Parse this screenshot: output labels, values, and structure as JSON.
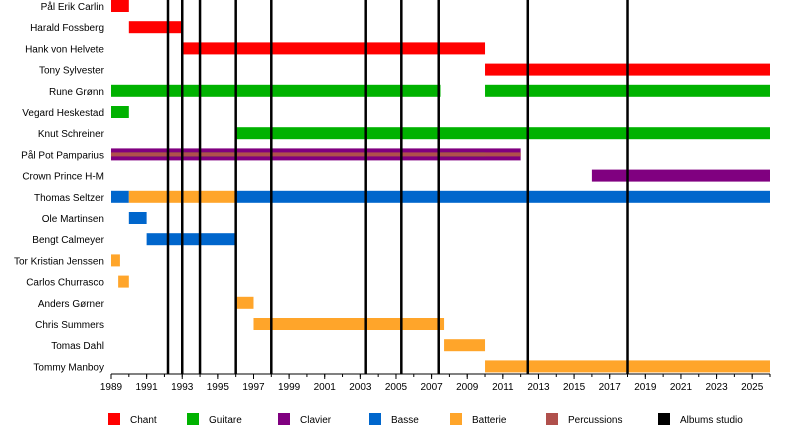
{
  "chart_data": {
    "type": "timeline",
    "title": "",
    "xlabel": "",
    "ylabel": "",
    "xlim": [
      1989,
      2026
    ],
    "xticks": [
      "1989",
      "1991",
      "1993",
      "1995",
      "1997",
      "1999",
      "2001",
      "2003",
      "2005",
      "2007",
      "2009",
      "2011",
      "2013",
      "2015",
      "2017",
      "2019",
      "2021",
      "2023",
      "2025"
    ],
    "grid": false,
    "legend_position": "bottom",
    "roles": [
      {
        "key": "chant",
        "label": "Chant",
        "color": "#ff0000"
      },
      {
        "key": "guitare",
        "label": "Guitare",
        "color": "#00b200"
      },
      {
        "key": "clavier",
        "label": "Clavier",
        "color": "#800080"
      },
      {
        "key": "basse",
        "label": "Basse",
        "color": "#0066cc"
      },
      {
        "key": "batterie",
        "label": "Batterie",
        "color": "#ffa52a"
      },
      {
        "key": "percussions",
        "label": "Percussions",
        "color": "#b0504c"
      },
      {
        "key": "albums",
        "label": "Albums studio",
        "color": "#000000"
      }
    ],
    "members": [
      {
        "name": "Pål Erik Carlin",
        "bars": [
          {
            "role": "chant",
            "start": 1989.0,
            "end": 1990.0
          }
        ]
      },
      {
        "name": "Harald Fossberg",
        "bars": [
          {
            "role": "chant",
            "start": 1990.0,
            "end": 1993.0
          }
        ]
      },
      {
        "name": "Hank von Helvete",
        "bars": [
          {
            "role": "chant",
            "start": 1993.0,
            "end": 2010.0
          }
        ]
      },
      {
        "name": "Tony Sylvester",
        "bars": [
          {
            "role": "chant",
            "start": 2010.0,
            "end": 2026.0
          }
        ]
      },
      {
        "name": "Rune Grønn",
        "bars": [
          {
            "role": "guitare",
            "start": 1989.0,
            "end": 2007.5
          },
          {
            "role": "guitare",
            "start": 2010.0,
            "end": 2026.0
          }
        ]
      },
      {
        "name": "Vegard Heskestad",
        "bars": [
          {
            "role": "guitare",
            "start": 1989.0,
            "end": 1990.0
          }
        ]
      },
      {
        "name": "Knut Schreiner",
        "bars": [
          {
            "role": "guitare",
            "start": 1996.0,
            "end": 2026.0
          }
        ]
      },
      {
        "name": "Pål Pot Pamparius",
        "bars": [
          {
            "role": "clavier",
            "start": 1989.0,
            "end": 2012.0
          },
          {
            "role": "guitare",
            "start": 1990.0,
            "end": 1996.0,
            "thin": true
          },
          {
            "role": "guitare",
            "start": 2007.5,
            "end": 2010.0,
            "thin": true
          },
          {
            "role": "percussions",
            "start": 1989.0,
            "end": 2012.0,
            "thin": true
          }
        ]
      },
      {
        "name": "Crown Prince H-M",
        "bars": [
          {
            "role": "clavier",
            "start": 2016.0,
            "end": 2026.0
          }
        ]
      },
      {
        "name": "Thomas Seltzer",
        "bars": [
          {
            "role": "basse",
            "start": 1989.0,
            "end": 1990.0
          },
          {
            "role": "batterie",
            "start": 1990.0,
            "end": 1996.0
          },
          {
            "role": "basse",
            "start": 1996.0,
            "end": 2026.0
          }
        ]
      },
      {
        "name": "Ole Martinsen",
        "bars": [
          {
            "role": "basse",
            "start": 1990.0,
            "end": 1991.0
          }
        ]
      },
      {
        "name": "Bengt Calmeyer",
        "bars": [
          {
            "role": "basse",
            "start": 1991.0,
            "end": 1996.0
          }
        ]
      },
      {
        "name": "Tor Kristian Jenssen",
        "bars": [
          {
            "role": "batterie",
            "start": 1989.0,
            "end": 1989.5
          }
        ]
      },
      {
        "name": "Carlos Churrasco",
        "bars": [
          {
            "role": "batterie",
            "start": 1989.4,
            "end": 1990.0
          }
        ]
      },
      {
        "name": "Anders Gørner",
        "bars": [
          {
            "role": "batterie",
            "start": 1996.0,
            "end": 1997.0
          }
        ]
      },
      {
        "name": "Chris Summers",
        "bars": [
          {
            "role": "batterie",
            "start": 1997.0,
            "end": 2007.7
          }
        ]
      },
      {
        "name": "Tomas Dahl",
        "bars": [
          {
            "role": "batterie",
            "start": 2007.7,
            "end": 2010.0
          }
        ]
      },
      {
        "name": "Tommy Manboy",
        "bars": [
          {
            "role": "batterie",
            "start": 2010.0,
            "end": 2026.0
          }
        ]
      }
    ],
    "albums": [
      1992.2,
      1993.0,
      1994.0,
      1996.0,
      1998.0,
      2003.3,
      2005.3,
      2007.4,
      2012.4,
      2018.0
    ]
  }
}
